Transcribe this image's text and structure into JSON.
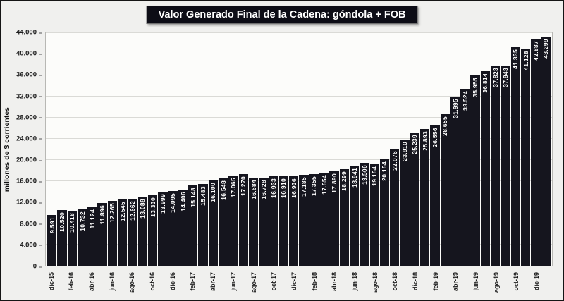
{
  "chart_data": {
    "type": "bar",
    "title": "Valor Generado Final de la Cadena: góndola + FOB",
    "ylabel": "millones de $ corrientes",
    "ylim": [
      0,
      44000
    ],
    "grid": true,
    "bar_color": "#15151e",
    "y_ticks": [
      0,
      4000,
      8000,
      12000,
      16000,
      20000,
      24000,
      28000,
      32000,
      36000,
      40000,
      44000
    ],
    "y_tick_labels": [
      "0",
      "4.000",
      "8.000",
      "12.000",
      "16.000",
      "20.000",
      "24.000",
      "28.000",
      "32.000",
      "36.000",
      "40.000",
      "44.000"
    ],
    "x_tick_labels": [
      "dic-15",
      "feb-16",
      "abr-16",
      "jun-16",
      "ago-16",
      "oct-16",
      "dic-16",
      "feb-17",
      "abr-17",
      "jun-17",
      "ago-17",
      "oct-17",
      "dic-17",
      "feb-18",
      "abr-18",
      "jun-18",
      "ago-18",
      "oct-18",
      "dic-18",
      "feb-19",
      "abr-19",
      "jun-19",
      "ago-19",
      "oct-19",
      "dic-19"
    ],
    "x_tick_every": 2,
    "values": [
      9591,
      10520,
      10418,
      10732,
      11124,
      11896,
      12265,
      12545,
      12662,
      13088,
      13330,
      13999,
      14095,
      14406,
      15148,
      15483,
      16100,
      16548,
      17065,
      17270,
      16684,
      16728,
      16933,
      16910,
      16936,
      17185,
      17355,
      17554,
      17890,
      18299,
      18941,
      19506,
      19154,
      20154,
      22076,
      23910,
      25239,
      25893,
      26556,
      28655,
      31995,
      33524,
      35955,
      36814,
      37823,
      37843,
      41335,
      41128,
      42887,
      43299
    ],
    "bar_labels": [
      "9.591",
      "10.520",
      "10.418",
      "10.732",
      "11.124",
      "11.896",
      "12.265",
      "12.545",
      "12.662",
      "13.088",
      "13.330",
      "13.999",
      "14.095",
      "14.406",
      "15.148",
      "15.483",
      "16.100",
      "16.548",
      "17.065",
      "17.270",
      "16.684",
      "16.728",
      "16.933",
      "16.910",
      "16.936",
      "17.185",
      "17.355",
      "17.554",
      "17.890",
      "18.299",
      "18.941",
      "19.506",
      "19.154",
      "20.154",
      "22.076",
      "23.910",
      "25.239",
      "25.893",
      "26.556",
      "28.655",
      "31.995",
      "33.524",
      "35.955",
      "36.814",
      "37.823",
      "37.843",
      "41.335",
      "41.128",
      "42.887",
      "43.299"
    ]
  }
}
